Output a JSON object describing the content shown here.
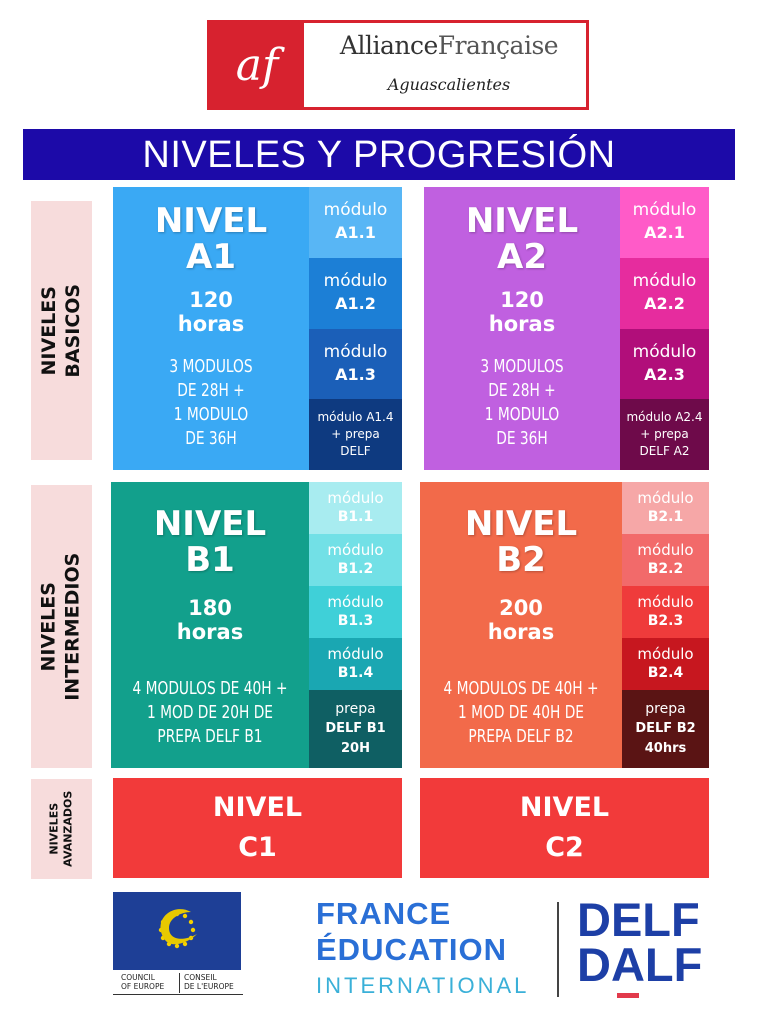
{
  "header": {
    "logo_mark": "af",
    "logo_name_1": "Alliance",
    "logo_name_2": "Française",
    "logo_city": "Aguascalientes"
  },
  "title": "NIVELES Y PROGRESIÓN",
  "side_labels": {
    "basic": [
      "NIVELES",
      "BASICOS"
    ],
    "intermediate": [
      "NIVELES",
      "INTERMEDIOS"
    ],
    "advanced": [
      "NIVELES",
      "AVANZADOS"
    ]
  },
  "levels": {
    "a1": {
      "title": [
        "NIVEL",
        "A1"
      ],
      "hours": [
        "120",
        "horas"
      ],
      "desc": [
        "3 MODULOS",
        "DE 28H +",
        "1 MODULO",
        "DE 36H"
      ],
      "color": "#3aa9f4",
      "modules": [
        {
          "word": "módulo",
          "code": "A1.1",
          "color": "#58b6f5"
        },
        {
          "word": "módulo",
          "code": "A1.2",
          "color": "#1c7fd6"
        },
        {
          "word": "módulo",
          "code": "A1.3",
          "color": "#1b5fb8"
        },
        {
          "lines": [
            "módulo A1.4",
            "+ prepa",
            "DELF"
          ],
          "color": "#0e3a80"
        }
      ]
    },
    "a2": {
      "title": [
        "NIVEL",
        "A2"
      ],
      "hours": [
        "120",
        "horas"
      ],
      "desc": [
        "3 MODULOS",
        "DE 28H +",
        "1 MODULO",
        "DE 36H"
      ],
      "color": "#c060e0",
      "modules": [
        {
          "word": "módulo",
          "code": "A2.1",
          "color": "#ff5bc8"
        },
        {
          "word": "módulo",
          "code": "A2.2",
          "color": "#e62c9e"
        },
        {
          "word": "módulo",
          "code": "A2.3",
          "color": "#b10e7a"
        },
        {
          "lines": [
            "módulo A2.4",
            "+ prepa",
            "DELF A2"
          ],
          "color": "#6e0a4a"
        }
      ]
    },
    "b1": {
      "title": [
        "NIVEL",
        "B1"
      ],
      "hours": [
        "180",
        "horas"
      ],
      "desc": [
        "4 MODULOS DE 40H +",
        "1 MOD DE 20H DE",
        "PREPA DELF B1"
      ],
      "color": "#12a08c",
      "modules": [
        {
          "word": "módulo",
          "code": "B1.1",
          "color": "#a8ecf0"
        },
        {
          "word": "módulo",
          "code": "B1.2",
          "color": "#72e0e6"
        },
        {
          "word": "módulo",
          "code": "B1.3",
          "color": "#3fd0d8"
        },
        {
          "word": "módulo",
          "code": "B1.4",
          "color": "#1aa7b2"
        },
        {
          "lines": [
            "prepa",
            "DELF B1",
            "20H"
          ],
          "color": "#0f5f63"
        }
      ]
    },
    "b2": {
      "title": [
        "NIVEL",
        "B2"
      ],
      "hours": [
        "200",
        "horas"
      ],
      "desc": [
        "4 MODULOS DE 40H +",
        "1 MOD DE 40H DE",
        "PREPA DELF B2"
      ],
      "color": "#f26a4a",
      "modules": [
        {
          "word": "módulo",
          "code": "B2.1",
          "color": "#f6a7a7"
        },
        {
          "word": "módulo",
          "code": "B2.2",
          "color": "#f26a6a"
        },
        {
          "word": "módulo",
          "code": "B2.3",
          "color": "#ef3b3b"
        },
        {
          "word": "módulo",
          "code": "B2.4",
          "color": "#c7171f"
        },
        {
          "lines": [
            "prepa",
            "DELF B2",
            "40hrs"
          ],
          "color": "#5a1414"
        }
      ]
    },
    "c1": {
      "lines": [
        "NIVEL",
        "C1"
      ],
      "color": "#f23a3a"
    },
    "c2": {
      "lines": [
        "NIVEL",
        "C2"
      ],
      "color": "#f23a3a"
    }
  },
  "footer": {
    "coe_left": [
      "COUNCIL",
      "OF EUROPE"
    ],
    "coe_right": [
      "CONSEIL",
      "DE L'EUROPE"
    ],
    "fei": [
      "FRANCE",
      "ÉDUCATION",
      "INTERNATIONAL"
    ],
    "delf": [
      "DELF",
      "DALF"
    ]
  }
}
